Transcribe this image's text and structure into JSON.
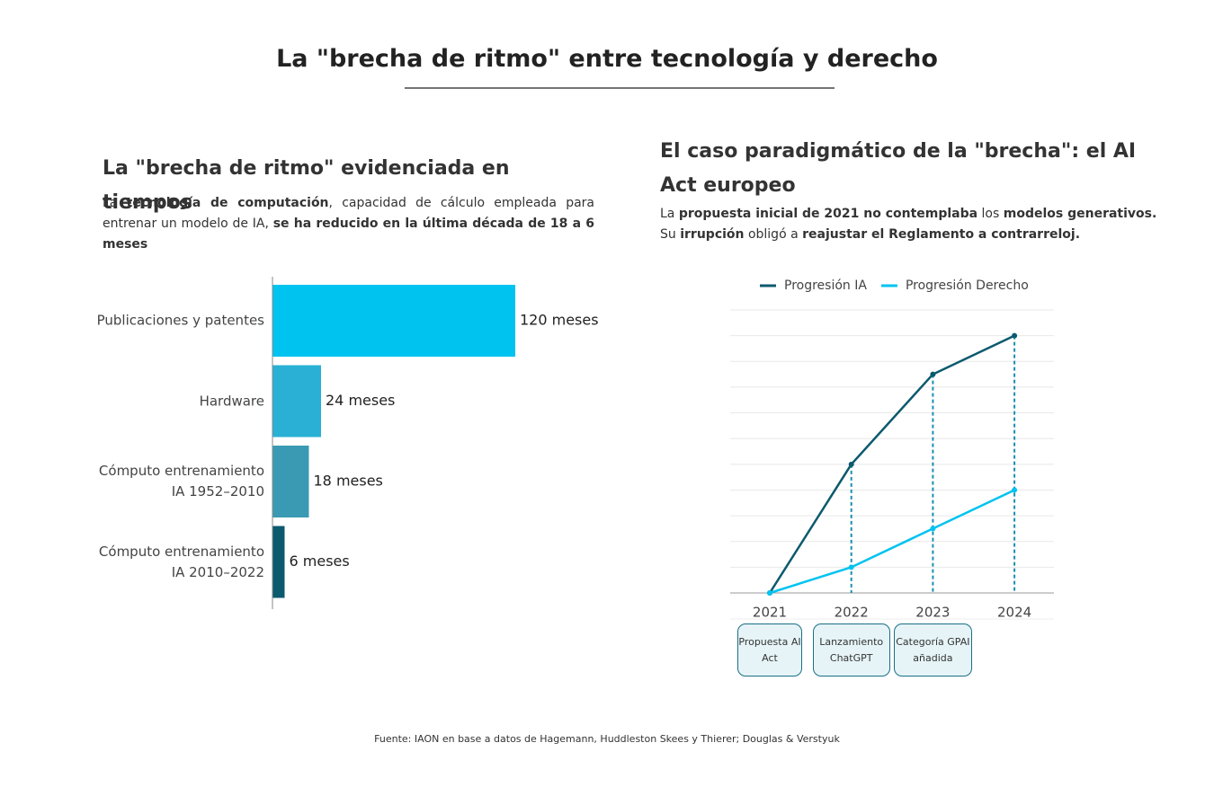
{
  "title": "La \"brecha de ritmo\" entre tecnología y derecho",
  "source": "Fuente: IAON en base a datos de Hagemann, Huddleston Skees y Thierer; Douglas & Verstyuk",
  "chart_data": [
    {
      "type": "bar",
      "orientation": "horizontal",
      "title": "La \"brecha de ritmo\" evidenciada en tiempos",
      "description": [
        {
          "text": "La ",
          "bold": false
        },
        {
          "text": "tecnología de computación",
          "bold": true
        },
        {
          "text": ", capacidad de cálculo empleada para entrenar un modelo de IA, ",
          "bold": false
        },
        {
          "text": "se ha reducido en la última década de 18 a 6 meses",
          "bold": true
        }
      ],
      "categories": [
        "Publicaciones y patentes",
        "Hardware",
        "Cómputo entrenamiento IA 1952–2010",
        "Cómputo entrenamiento IA 2010–2022"
      ],
      "values": [
        120,
        24,
        18,
        6
      ],
      "value_labels": [
        "120 meses",
        "24 meses",
        "18 meses",
        "6 meses"
      ],
      "colors": [
        "#00c3f0",
        "#29b0d4",
        "#3a9ab3",
        "#0b5a6e"
      ],
      "xlim": [
        0,
        120
      ]
    },
    {
      "type": "line",
      "title": "El caso paradigmático de la \"brecha\": el AI Act europeo",
      "description": [
        {
          "text": "La ",
          "bold": false
        },
        {
          "text": "propuesta inicial de 2021 no contemplaba",
          "bold": true
        },
        {
          "text": " los ",
          "bold": false
        },
        {
          "text": "modelos generativos.",
          "bold": true
        },
        {
          "text": " Su ",
          "bold": false
        },
        {
          "text": "irrupción",
          "bold": true
        },
        {
          "text": " obligó a ",
          "bold": false
        },
        {
          "text": "reajustar el Reglamento a contrarreloj.",
          "bold": true
        }
      ],
      "categories": [
        "2021",
        "2022",
        "2023",
        "2024"
      ],
      "series": [
        {
          "name": "Progresión IA",
          "color": "#0b5a6e",
          "values": [
            0,
            5,
            8.5,
            10
          ]
        },
        {
          "name": "Progresión Derecho",
          "color": "#00c3f0",
          "values": [
            0,
            1,
            2.5,
            4
          ]
        }
      ],
      "annotations": [
        "Propuesta AI Act",
        "Lanzamiento ChatGPT",
        "Categoría GPAI añadida"
      ],
      "ylim": [
        0,
        11
      ],
      "yticks": [
        0,
        1,
        2,
        3,
        4,
        5,
        6,
        7,
        8,
        9,
        10,
        11
      ],
      "grid": true,
      "droplines": true,
      "legend": "top"
    }
  ]
}
